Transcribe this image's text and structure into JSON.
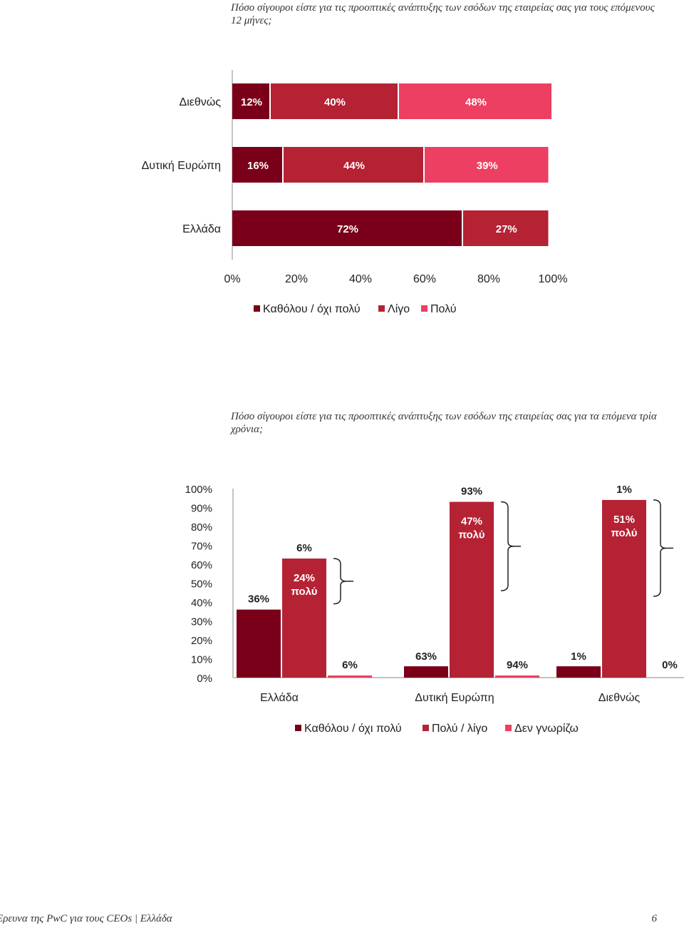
{
  "questions": {
    "q1": "Πόσο σίγουροι είστε για τις προοπτικές ανάπτυξης των εσόδων της εταιρείας σας για τους επόμενους 12 μήνες;",
    "q2": "Πόσο σίγουροι είστε για τις προοπτικές ανάπτυξης των εσόδων της εταιρείας σας για τα επόμενα τρία χρόνια;"
  },
  "colors": {
    "dark": "#7a0019",
    "mid": "#b52234",
    "light": "#ec3f61"
  },
  "chart_data": [
    {
      "type": "bar",
      "orientation": "horizontal",
      "stacked": true,
      "title": "Πόσο σίγουροι είστε για τις προοπτικές ανάπτυξης των εσόδων της εταιρείας σας για τους επόμενους 12 μήνες;",
      "categories": [
        "Διεθνώς",
        "Δυτική Ευρώπη",
        "Ελλάδα"
      ],
      "series": [
        {
          "name": "Καθόλου / όχι πολύ",
          "values": [
            12,
            16,
            72
          ]
        },
        {
          "name": "Λίγο",
          "values": [
            40,
            44,
            27
          ]
        },
        {
          "name": "Πολύ",
          "values": [
            48,
            39,
            0
          ]
        }
      ],
      "data_labels": [
        [
          "12%",
          "40%",
          "48%"
        ],
        [
          "16%",
          "44%",
          "39%"
        ],
        [
          "72%",
          "27%",
          ""
        ]
      ],
      "xlim": [
        0,
        100
      ],
      "ticks": [
        "0%",
        "20%",
        "40%",
        "60%",
        "80%",
        "100%"
      ],
      "legend": [
        "Καθόλου / όχι πολύ",
        "Λίγο",
        "Πολύ"
      ],
      "legend_position": "bottom"
    },
    {
      "type": "bar",
      "orientation": "vertical",
      "stacked": false,
      "title": "Πόσο σίγουροι είστε για τις προοπτικές ανάπτυξης των εσόδων της εταιρείας σας για τα επόμενα τρία χρόνια;",
      "categories": [
        "Ελλάδα",
        "Δυτική Ευρώπη",
        "Διεθνώς"
      ],
      "series": [
        {
          "name": "Καθόλου / όχι πολύ",
          "values": [
            36,
            6,
            6
          ]
        },
        {
          "name": "Πολύ / λίγο",
          "values": [
            63,
            93,
            94
          ]
        },
        {
          "name": "Δεν γνωρίζω",
          "values": [
            1,
            1,
            0
          ]
        }
      ],
      "data_labels": [
        [
          "36%",
          "6%",
          "6%"
        ],
        [
          "63%",
          "93%",
          "94%"
        ],
        [
          "1%",
          "1%",
          "0%"
        ]
      ],
      "annotations": [
        {
          "line1": "24%",
          "line2": "πολύ",
          "value": 24
        },
        {
          "line1": "47%",
          "line2": "πολύ",
          "value": 47
        },
        {
          "line1": "51%",
          "line2": "πολύ",
          "value": 51
        }
      ],
      "ylim": [
        0,
        100
      ],
      "ticks": [
        "100%",
        "90%",
        "80%",
        "70%",
        "60%",
        "50%",
        "40%",
        "30%",
        "20%",
        "10%",
        "0%"
      ],
      "legend": [
        "Καθόλου / όχι πολύ",
        "Πολύ / λίγο",
        "Δεν γνωρίζω"
      ],
      "legend_position": "bottom"
    }
  ],
  "footer": {
    "left": "Έρευνα της PwC για τους CEOs  |  Ελλάδα",
    "page": "6"
  }
}
